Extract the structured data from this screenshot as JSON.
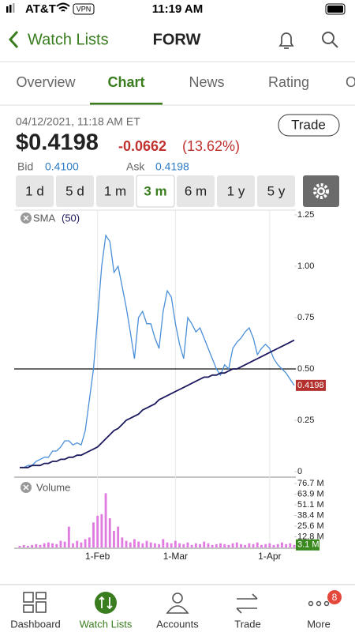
{
  "status_bar": {
    "carrier": "AT&T",
    "vpn": "VPN",
    "time": "11:19 AM"
  },
  "nav": {
    "back": "Watch Lists",
    "title": "FORW"
  },
  "tabs": {
    "items": [
      "Overview",
      "Chart",
      "News",
      "Rating",
      "O"
    ],
    "active": 1
  },
  "quote": {
    "datetime": "04/12/2021, 11:18 AM ET",
    "price": "$0.4198",
    "change": "-0.0662",
    "change_pct": "(13.62%)",
    "trade": "Trade",
    "bid_label": "Bid",
    "bid": "0.4100",
    "ask_label": "Ask",
    "ask": "0.4198"
  },
  "ranges": {
    "items": [
      "1 d",
      "5 d",
      "1 m",
      "3 m",
      "6 m",
      "1 y",
      "5 y"
    ],
    "active": 3
  },
  "chart_data": [
    {
      "type": "line",
      "legend": "SMA",
      "legend_period": "(50)",
      "categories": [
        null,
        null,
        null,
        null,
        null,
        null,
        null,
        null,
        null,
        null,
        null,
        null,
        null,
        null,
        null,
        null,
        null,
        null,
        null,
        "1-Feb",
        null,
        null,
        null,
        null,
        null,
        null,
        null,
        null,
        null,
        null,
        null,
        null,
        null,
        null,
        null,
        null,
        null,
        null,
        "1-Mar",
        null,
        null,
        null,
        null,
        null,
        null,
        null,
        null,
        null,
        null,
        null,
        null,
        null,
        null,
        null,
        null,
        null,
        null,
        null,
        null,
        null,
        null,
        "1-Apr",
        null,
        null,
        null,
        null,
        null,
        null
      ],
      "ylim": [
        0,
        1.25
      ],
      "yticks": [
        0,
        0.25,
        {
          "value": 0.5,
          "label": "0.50"
        },
        0.75,
        {
          "value": 1,
          "label": "1.00"
        },
        1.25
      ],
      "hline": 0.5,
      "series": [
        {
          "color": "#4a8fd8",
          "values": [
            0.02,
            0.02,
            0.03,
            0.03,
            0.05,
            0.06,
            0.07,
            0.07,
            0.1,
            0.1,
            0.12,
            0.15,
            0.15,
            0.13,
            0.14,
            0.13,
            0.2,
            0.35,
            0.5,
            0.75,
            1.0,
            1.15,
            1.12,
            0.97,
            1.0,
            0.9,
            0.8,
            0.68,
            0.55,
            0.75,
            0.78,
            0.72,
            0.72,
            0.65,
            0.6,
            0.78,
            0.88,
            0.85,
            0.72,
            0.62,
            0.55,
            0.75,
            0.72,
            0.68,
            0.7,
            0.65,
            0.6,
            0.55,
            0.5,
            0.47,
            0.52,
            0.5,
            0.6,
            0.63,
            0.65,
            0.68,
            0.7,
            0.65,
            0.57,
            0.6,
            0.62,
            0.6,
            0.55,
            0.52,
            0.5,
            0.48,
            0.45,
            0.4198
          ]
        },
        {
          "name": "SMA",
          "color": "#1c1a5e",
          "values": [
            0.02,
            0.02,
            0.02,
            0.03,
            0.03,
            0.03,
            0.04,
            0.04,
            0.05,
            0.05,
            0.06,
            0.06,
            0.07,
            0.07,
            0.08,
            0.08,
            0.09,
            0.1,
            0.11,
            0.12,
            0.14,
            0.16,
            0.18,
            0.2,
            0.21,
            0.23,
            0.25,
            0.26,
            0.27,
            0.28,
            0.3,
            0.31,
            0.32,
            0.33,
            0.35,
            0.36,
            0.37,
            0.38,
            0.39,
            0.4,
            0.41,
            0.42,
            0.43,
            0.44,
            0.45,
            0.46,
            0.46,
            0.47,
            0.47,
            0.48,
            0.48,
            0.49,
            0.5,
            0.5,
            0.51,
            0.52,
            0.53,
            0.54,
            0.55,
            0.56,
            0.57,
            0.58,
            0.59,
            0.6,
            0.61,
            0.62,
            0.63,
            0.64
          ]
        }
      ]
    },
    {
      "type": "bar",
      "title": "Volume",
      "color": "#e07ce0",
      "ylim": [
        0,
        76.7
      ],
      "yticks": [
        {
          "value": 76.7,
          "label": "76.7 M"
        },
        {
          "value": 63.9,
          "label": "63.9 M"
        },
        {
          "value": 51.1,
          "label": "51.1 M"
        },
        {
          "value": 38.4,
          "label": "38.4 M"
        },
        {
          "value": 25.6,
          "label": "25.6 M"
        },
        {
          "value": 12.8,
          "label": "12.8 M"
        }
      ],
      "values": [
        2,
        3,
        2,
        3,
        4,
        3,
        5,
        6,
        5,
        4,
        8,
        7,
        25,
        5,
        8,
        6,
        10,
        12,
        30,
        38,
        40,
        65,
        35,
        20,
        25,
        12,
        8,
        6,
        10,
        7,
        5,
        8,
        6,
        5,
        4,
        10,
        6,
        5,
        8,
        5,
        4,
        6,
        3,
        5,
        4,
        7,
        5,
        3,
        4,
        5,
        4,
        3,
        5,
        6,
        4,
        3,
        5,
        4,
        6,
        3,
        4,
        5,
        3,
        4,
        6,
        4,
        5,
        3.1
      ],
      "value_labels": [
        null,
        null,
        null,
        null,
        null,
        null,
        null,
        null,
        null,
        null,
        null,
        null,
        null,
        null,
        null,
        null,
        null,
        null,
        null,
        null,
        null,
        null,
        null,
        null,
        null,
        null,
        null,
        null,
        null,
        null,
        null,
        null,
        null,
        null,
        null,
        null,
        null,
        null,
        null,
        null,
        null,
        null,
        null,
        null,
        null,
        null,
        null,
        null,
        null,
        null,
        null,
        null,
        null,
        null,
        null,
        null,
        null,
        null,
        null,
        null,
        null,
        null,
        null,
        null,
        null,
        null,
        null,
        "3.1 M"
      ]
    }
  ],
  "bottom_nav": {
    "items": [
      "Dashboard",
      "Watch Lists",
      "Accounts",
      "Trade",
      "More"
    ],
    "active": 1,
    "badge": "8"
  }
}
